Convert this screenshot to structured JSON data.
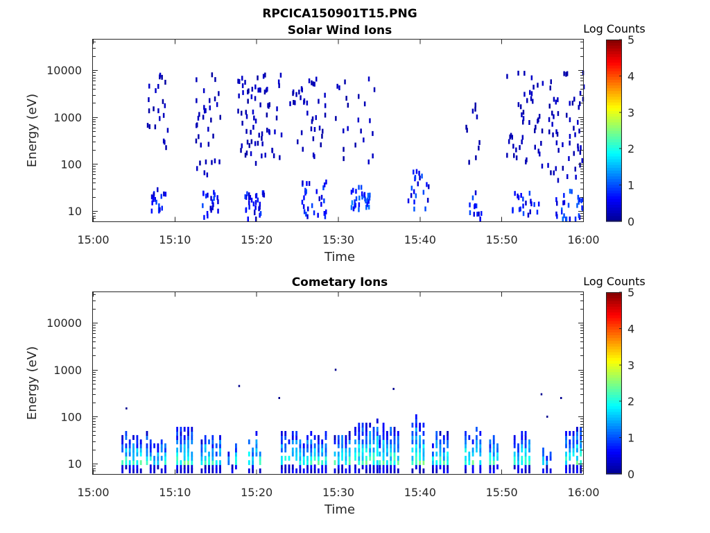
{
  "figure": {
    "title": "RPCICA150901T15.PNG"
  },
  "colormap": [
    "#00008f",
    "#0000ff",
    "#0080ff",
    "#00ffff",
    "#80ff80",
    "#ffff00",
    "#ff8000",
    "#ff0000",
    "#800000"
  ],
  "chart_data": [
    {
      "type": "heatmap",
      "title": "Solar Wind Ions",
      "xlabel": "Time",
      "ylabel": "Energy (eV)",
      "x_ticks": [
        "15:00",
        "15:10",
        "15:20",
        "15:30",
        "15:40",
        "15:50",
        "16:00"
      ],
      "y_ticks": [
        "10",
        "100",
        "1000",
        "10000"
      ],
      "y_scale": "log",
      "xlim": [
        "15:00",
        "16:00"
      ],
      "ylim": [
        6,
        45000
      ],
      "colorbar": {
        "label": "Log Counts",
        "range": [
          0,
          5
        ],
        "ticks": [
          "0",
          "1",
          "2",
          "3",
          "4",
          "5"
        ]
      },
      "clusters": [
        {
          "t0": 6.5,
          "t1": 9.2,
          "e0": 200,
          "e1": 9000,
          "n": 22,
          "c": [
            0.1,
            0.35
          ]
        },
        {
          "t0": 7.0,
          "t1": 8.8,
          "e0": 10,
          "e1": 32,
          "n": 18,
          "c": [
            0.3,
            1.0
          ]
        },
        {
          "t0": 12.5,
          "t1": 15.5,
          "e0": 50,
          "e1": 9000,
          "n": 34,
          "c": [
            0.1,
            0.35
          ]
        },
        {
          "t0": 13.3,
          "t1": 15.3,
          "e0": 8,
          "e1": 30,
          "n": 20,
          "c": [
            0.3,
            1.0
          ]
        },
        {
          "t0": 17.5,
          "t1": 23.0,
          "e0": 100,
          "e1": 9000,
          "n": 70,
          "c": [
            0.1,
            0.35
          ]
        },
        {
          "t0": 18.5,
          "t1": 21.0,
          "e0": 6,
          "e1": 30,
          "n": 30,
          "c": [
            0.3,
            1.0
          ]
        },
        {
          "t0": 24.0,
          "t1": 28.5,
          "e0": 150,
          "e1": 9000,
          "n": 38,
          "c": [
            0.1,
            0.35
          ]
        },
        {
          "t0": 25.5,
          "t1": 28.5,
          "e0": 8,
          "e1": 55,
          "n": 28,
          "c": [
            0.3,
            1.0
          ]
        },
        {
          "t0": 29.5,
          "t1": 35.0,
          "e0": 100,
          "e1": 9000,
          "n": 22,
          "c": [
            0.1,
            0.35
          ]
        },
        {
          "t0": 31.5,
          "t1": 34.0,
          "e0": 12,
          "e1": 36,
          "n": 30,
          "c": [
            0.5,
            1.3
          ]
        },
        {
          "t0": 38.5,
          "t1": 41.0,
          "e0": 12,
          "e1": 80,
          "n": 20,
          "c": [
            0.3,
            1.1
          ]
        },
        {
          "t0": 45.5,
          "t1": 47.5,
          "e0": 100,
          "e1": 3000,
          "n": 10,
          "c": [
            0.1,
            0.35
          ]
        },
        {
          "t0": 45.5,
          "t1": 47.5,
          "e0": 6,
          "e1": 30,
          "n": 12,
          "c": [
            0.3,
            1.0
          ]
        },
        {
          "t0": 50.5,
          "t1": 55.0,
          "e0": 100,
          "e1": 10000,
          "n": 45,
          "c": [
            0.1,
            0.35
          ]
        },
        {
          "t0": 50.5,
          "t1": 54.5,
          "e0": 8,
          "e1": 30,
          "n": 20,
          "c": [
            0.3,
            1.0
          ]
        },
        {
          "t0": 55.5,
          "t1": 60.0,
          "e0": 50,
          "e1": 10000,
          "n": 55,
          "c": [
            0.1,
            0.35
          ]
        },
        {
          "t0": 56.5,
          "t1": 60.0,
          "e0": 6,
          "e1": 30,
          "n": 28,
          "c": [
            0.3,
            1.2
          ]
        }
      ]
    },
    {
      "type": "heatmap",
      "title": "Cometary Ions",
      "xlabel": "Time",
      "ylabel": "Energy (eV)",
      "x_ticks": [
        "15:00",
        "15:10",
        "15:20",
        "15:30",
        "15:40",
        "15:50",
        "16:00"
      ],
      "y_ticks": [
        "10",
        "100",
        "1000",
        "10000"
      ],
      "y_scale": "log",
      "xlim": [
        "15:00",
        "16:00"
      ],
      "ylim": [
        6,
        45000
      ],
      "colorbar": {
        "label": "Log Counts",
        "range": [
          0,
          5
        ],
        "ticks": [
          "0",
          "1",
          "2",
          "3",
          "4",
          "5"
        ]
      },
      "bands": [
        {
          "t0": 3.5,
          "t1": 6.0,
          "etop": 45
        },
        {
          "t0": 6.5,
          "t1": 8.8,
          "etop": 38
        },
        {
          "t0": 10.2,
          "t1": 12.2,
          "etop": 60
        },
        {
          "t0": 13.2,
          "t1": 15.5,
          "etop": 40
        },
        {
          "t0": 16.5,
          "t1": 17.5,
          "etop": 22
        },
        {
          "t0": 19.0,
          "t1": 20.5,
          "etop": 38
        },
        {
          "t0": 23.0,
          "t1": 28.5,
          "etop": 45
        },
        {
          "t0": 29.5,
          "t1": 31.5,
          "etop": 50
        },
        {
          "t0": 32.0,
          "t1": 35.0,
          "etop": 80
        },
        {
          "t0": 35.0,
          "t1": 37.5,
          "etop": 60
        },
        {
          "t0": 39.0,
          "t1": 40.5,
          "etop": 100
        },
        {
          "t0": 41.5,
          "t1": 43.5,
          "etop": 45
        },
        {
          "t0": 45.5,
          "t1": 47.5,
          "etop": 60
        },
        {
          "t0": 48.5,
          "t1": 49.5,
          "etop": 40
        },
        {
          "t0": 51.5,
          "t1": 53.5,
          "etop": 40
        },
        {
          "t0": 55.0,
          "t1": 56.0,
          "etop": 20
        },
        {
          "t0": 57.8,
          "t1": 59.8,
          "etop": 60
        }
      ],
      "points": [
        {
          "t": 4.0,
          "e": 150
        },
        {
          "t": 17.8,
          "e": 450
        },
        {
          "t": 22.7,
          "e": 250
        },
        {
          "t": 29.6,
          "e": 1000
        },
        {
          "t": 36.7,
          "e": 390
        },
        {
          "t": 54.8,
          "e": 300
        },
        {
          "t": 55.5,
          "e": 100
        },
        {
          "t": 57.2,
          "e": 250
        }
      ]
    }
  ]
}
